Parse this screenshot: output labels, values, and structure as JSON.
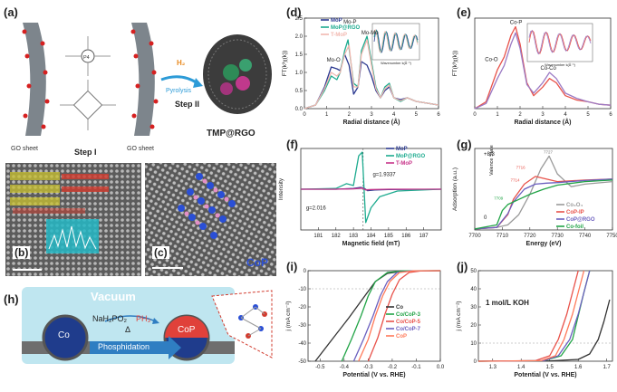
{
  "panel_labels": {
    "a": "(a)",
    "b": "(b)",
    "c": "(c)",
    "d": "(d)",
    "e": "(e)",
    "f": "(f)",
    "g": "(g)",
    "h": "(h)",
    "i": "(i)",
    "j": "(j)"
  },
  "panel_a": {
    "go_left": "GO sheet",
    "go_right": "GO sheet",
    "step1": "Step I",
    "step2": "Step II",
    "gas": "H₂",
    "pyrolysis": "Pyrolysis",
    "product": "TMP@RGO",
    "center_atom": "P4"
  },
  "panel_c": {
    "label": "CoP"
  },
  "panel_h": {
    "vacuum": "Vacuum",
    "co": "Co",
    "cop": "CoP",
    "reagent": "NaH₂PO₂",
    "delta": "Δ",
    "ph3": "PH₃",
    "process": "Phosphidation"
  },
  "chart_data": [
    {
      "panel": "d",
      "type": "line",
      "xlabel": "Radial distance (Å)",
      "ylabel": "FT(k³χ(k))",
      "xlim": [
        0,
        6
      ],
      "ylim": [
        0,
        2.5
      ],
      "xticks": [
        "0",
        "1",
        "2",
        "3",
        "4",
        "5",
        "6"
      ],
      "yticks": [
        "0.0",
        "0.5",
        "1.0",
        "1.5",
        "2.0",
        "2.5"
      ],
      "annotations": [
        "Mo-P",
        "Mo-Mo",
        "Mo-O"
      ],
      "series": [
        {
          "name": "MoP",
          "color": "#2b3990",
          "x": [
            0,
            0.5,
            0.9,
            1.2,
            1.45,
            1.6,
            1.8,
            2.0,
            2.2,
            2.4,
            2.55,
            2.8,
            3.0,
            3.2,
            3.4,
            3.6,
            3.8,
            4.0,
            4.3,
            4.6,
            5.0,
            5.5,
            6.0
          ],
          "y": [
            0.0,
            0.1,
            0.6,
            1.15,
            1.1,
            1.05,
            1.5,
            1.2,
            0.4,
            0.6,
            1.3,
            1.2,
            0.9,
            0.5,
            0.3,
            0.5,
            0.6,
            0.3,
            0.25,
            0.3,
            0.2,
            0.15,
            0.1
          ]
        },
        {
          "name": "MoP@RGO",
          "color": "#1dab8f",
          "x": [
            0,
            0.5,
            0.9,
            1.2,
            1.45,
            1.6,
            1.8,
            1.95,
            2.2,
            2.4,
            2.55,
            2.8,
            3.0,
            3.2,
            3.4,
            3.6,
            3.8,
            4.0,
            4.3,
            4.6,
            5.0,
            5.5,
            6.0
          ],
          "y": [
            0.0,
            0.1,
            0.5,
            0.9,
            0.8,
            1.0,
            1.6,
            1.9,
            0.7,
            0.6,
            1.6,
            2.0,
            1.3,
            0.6,
            0.3,
            0.6,
            0.7,
            0.3,
            0.2,
            0.3,
            0.2,
            0.15,
            0.1
          ]
        },
        {
          "name": "T-MoP",
          "color": "#f2b8b0",
          "x": [
            0,
            0.5,
            0.9,
            1.2,
            1.45,
            1.6,
            1.8,
            2.0,
            2.2,
            2.4,
            2.55,
            2.8,
            3.0,
            3.2,
            3.4,
            3.6,
            3.8,
            4.0,
            4.3,
            4.6,
            5.0,
            5.5,
            6.0
          ],
          "y": [
            0.0,
            0.1,
            0.55,
            1.0,
            0.9,
            1.0,
            1.5,
            1.75,
            0.6,
            0.6,
            1.5,
            1.9,
            1.2,
            0.55,
            0.3,
            0.55,
            0.65,
            0.3,
            0.22,
            0.3,
            0.2,
            0.15,
            0.1
          ]
        }
      ],
      "inset_xlabel": "Wavenumber k(Å⁻¹)"
    },
    {
      "panel": "e",
      "type": "line",
      "xlabel": "Radial distance (Å)",
      "ylabel": "FT(k³χ(k))",
      "xlim": [
        0,
        6
      ],
      "ylim": [
        0,
        1
      ],
      "xticks": [
        "0",
        "1",
        "2",
        "3",
        "4",
        "5",
        "6"
      ],
      "annotations": [
        "Co-P",
        "Co-O",
        "Co-Co"
      ],
      "series": [
        {
          "name": "CoP@RGO",
          "color": "#e8524a",
          "x": [
            0,
            0.5,
            1.0,
            1.3,
            1.6,
            1.8,
            2.0,
            2.3,
            2.6,
            3.0,
            3.3,
            3.6,
            4.0,
            4.5,
            5.0,
            5.5,
            6.0
          ],
          "y": [
            0.0,
            0.08,
            0.45,
            0.6,
            0.85,
            0.95,
            0.75,
            0.3,
            0.15,
            0.25,
            0.35,
            0.3,
            0.15,
            0.1,
            0.08,
            0.05,
            0.04
          ]
        },
        {
          "name": "CoP-IP",
          "color": "#9b7ac4",
          "x": [
            0,
            0.5,
            1.0,
            1.3,
            1.6,
            1.8,
            2.0,
            2.3,
            2.6,
            3.0,
            3.3,
            3.6,
            4.0,
            4.5,
            5.0,
            5.5,
            6.0
          ],
          "y": [
            0.0,
            0.06,
            0.35,
            0.5,
            0.75,
            0.88,
            0.7,
            0.28,
            0.18,
            0.3,
            0.42,
            0.35,
            0.18,
            0.12,
            0.08,
            0.05,
            0.04
          ]
        }
      ],
      "inset_xlabel": "Wavenumber k(Å⁻¹)"
    },
    {
      "panel": "f",
      "type": "line",
      "xlabel": "Magnetic field (mT)",
      "ylabel": "Intensity",
      "xlim": [
        180,
        188
      ],
      "xticks": [
        "181",
        "182",
        "183",
        "184",
        "185",
        "186",
        "187"
      ],
      "annotations": [
        "g=2.016",
        "g=1.9337"
      ],
      "series": [
        {
          "name": "MoP",
          "color": "#2b3990",
          "x": [
            180,
            182,
            183,
            183.4,
            183.6,
            183.8,
            184.2,
            185,
            188
          ],
          "y": [
            0,
            0,
            0.02,
            0.05,
            0.03,
            -0.04,
            -0.02,
            -0.01,
            0
          ]
        },
        {
          "name": "MoP@RGO",
          "color": "#1dab8f",
          "x": [
            180,
            182,
            182.6,
            183,
            183.3,
            183.5,
            183.7,
            184,
            184.5,
            185.5,
            188
          ],
          "y": [
            0,
            0.02,
            0.15,
            0.1,
            0.9,
            1.0,
            -0.9,
            -0.5,
            -0.2,
            -0.05,
            0
          ]
        },
        {
          "name": "T-MoP",
          "color": "#c8358a",
          "x": [
            180,
            182,
            183,
            183.5,
            183.7,
            184,
            185,
            188
          ],
          "y": [
            0,
            0,
            0.01,
            0.03,
            -0.02,
            -0.01,
            0,
            0
          ]
        }
      ]
    },
    {
      "panel": "g",
      "type": "line",
      "xlabel": "Energy (eV)",
      "ylabel": "Adsorption (a.u.)",
      "xlim": [
        7700,
        7750
      ],
      "xticks": [
        "7700",
        "7710",
        "7720",
        "7730",
        "7740",
        "7750"
      ],
      "annotations": [
        "+8/3",
        "0",
        "Valence State",
        "7727",
        "7716",
        "7714",
        "7709"
      ],
      "series": [
        {
          "name": "Co₃O₄",
          "color": "#9a9a9a",
          "x": [
            7700,
            7708,
            7712,
            7716,
            7720,
            7724,
            7727,
            7730,
            7735,
            7740,
            7750
          ],
          "y": [
            0.02,
            0.05,
            0.1,
            0.3,
            0.7,
            1.2,
            1.45,
            1.1,
            0.85,
            0.9,
            0.95
          ]
        },
        {
          "name": "CoP-IP",
          "color": "#e8524a",
          "x": [
            7700,
            7708,
            7712,
            7714,
            7718,
            7722,
            7726,
            7730,
            7740,
            7750
          ],
          "y": [
            0.02,
            0.05,
            0.3,
            0.6,
            0.9,
            1.05,
            1.0,
            0.95,
            0.98,
            1.0
          ]
        },
        {
          "name": "CoP@RGO",
          "color": "#6b5fbf",
          "x": [
            7700,
            7708,
            7712,
            7714,
            7718,
            7722,
            7726,
            7730,
            7740,
            7750
          ],
          "y": [
            0.02,
            0.05,
            0.32,
            0.55,
            0.8,
            0.9,
            0.92,
            0.93,
            0.97,
            1.0
          ]
        },
        {
          "name": "Co-foil",
          "color": "#22a447",
          "x": [
            7700,
            7708,
            7710,
            7712,
            7716,
            7720,
            7725,
            7730,
            7740,
            7750
          ],
          "y": [
            0.02,
            0.1,
            0.38,
            0.5,
            0.6,
            0.7,
            0.8,
            0.88,
            0.95,
            0.98
          ]
        }
      ]
    },
    {
      "panel": "i",
      "type": "line",
      "xlabel": "Potential (V vs. RHE)",
      "ylabel": "j (mA cm⁻²)",
      "xlim": [
        -0.55,
        0.0
      ],
      "ylim": [
        -50,
        0
      ],
      "xticks": [
        "-0.5",
        "-0.4",
        "-0.3",
        "-0.2",
        "-0.1",
        "0.0"
      ],
      "yticks": [
        "-50",
        "-40",
        "-30",
        "-20",
        "-10",
        "0"
      ],
      "series": [
        {
          "name": "Co",
          "color": "#333333",
          "x": [
            -0.52,
            -0.45,
            -0.38,
            -0.32,
            -0.27,
            -0.22,
            -0.15,
            0.0
          ],
          "y": [
            -50,
            -38,
            -26,
            -15,
            -6,
            -1.5,
            -0.2,
            0
          ]
        },
        {
          "name": "Co/CoP-3",
          "color": "#22a447",
          "x": [
            -0.41,
            -0.37,
            -0.33,
            -0.3,
            -0.27,
            -0.22,
            -0.15,
            0.0
          ],
          "y": [
            -50,
            -38,
            -25,
            -14,
            -6,
            -1,
            -0.1,
            0
          ]
        },
        {
          "name": "Co/CoP-5",
          "color": "#e8524a",
          "x": [
            -0.3,
            -0.26,
            -0.23,
            -0.2,
            -0.17,
            -0.13,
            -0.08,
            0.0
          ],
          "y": [
            -50,
            -37,
            -24,
            -13,
            -5,
            -1,
            -0.1,
            0
          ]
        },
        {
          "name": "Co/CoP-7",
          "color": "#6b5fbf",
          "x": [
            -0.36,
            -0.32,
            -0.28,
            -0.25,
            -0.22,
            -0.18,
            -0.12,
            0.0
          ],
          "y": [
            -50,
            -38,
            -25,
            -14,
            -6,
            -1,
            -0.1,
            0
          ]
        },
        {
          "name": "CoP",
          "color": "#ff7a5a",
          "x": [
            -0.34,
            -0.3,
            -0.27,
            -0.24,
            -0.21,
            -0.17,
            -0.11,
            0.0
          ],
          "y": [
            -50,
            -38,
            -25,
            -14,
            -6,
            -1,
            -0.1,
            0
          ]
        }
      ]
    },
    {
      "panel": "j",
      "type": "line",
      "xlabel": "Potential (V vs. RHE)",
      "ylabel": "j (mA cm⁻²)",
      "xlim": [
        1.25,
        1.72
      ],
      "ylim": [
        0,
        50
      ],
      "xticks": [
        "1.3",
        "1.4",
        "1.5",
        "1.6",
        "1.7"
      ],
      "yticks": [
        "0",
        "10",
        "20",
        "30",
        "40",
        "50"
      ],
      "annotations": [
        "1 mol/L KOH"
      ],
      "series": [
        {
          "name": "Co",
          "color": "#333333",
          "x": [
            1.25,
            1.5,
            1.6,
            1.64,
            1.67,
            1.69,
            1.71
          ],
          "y": [
            0,
            0.2,
            1,
            4,
            12,
            22,
            34
          ]
        },
        {
          "name": "Co/CoP-3",
          "color": "#22a447",
          "x": [
            1.25,
            1.48,
            1.54,
            1.58,
            1.6,
            1.62,
            1.64
          ],
          "y": [
            0,
            0.3,
            3,
            12,
            25,
            38,
            50
          ]
        },
        {
          "name": "Co/CoP-5",
          "color": "#e8524a",
          "x": [
            1.25,
            1.45,
            1.5,
            1.53,
            1.56,
            1.58,
            1.6
          ],
          "y": [
            0,
            0.3,
            3,
            12,
            26,
            38,
            50
          ]
        },
        {
          "name": "Co/CoP-7",
          "color": "#6b5fbf",
          "x": [
            1.25,
            1.48,
            1.53,
            1.57,
            1.6,
            1.62,
            1.64
          ],
          "y": [
            0,
            0.3,
            3,
            12,
            26,
            38,
            50
          ]
        },
        {
          "name": "CoP",
          "color": "#ff7a5a",
          "x": [
            1.25,
            1.47,
            1.52,
            1.55,
            1.58,
            1.6,
            1.62
          ],
          "y": [
            0,
            0.3,
            3,
            12,
            26,
            38,
            50
          ]
        }
      ]
    }
  ]
}
